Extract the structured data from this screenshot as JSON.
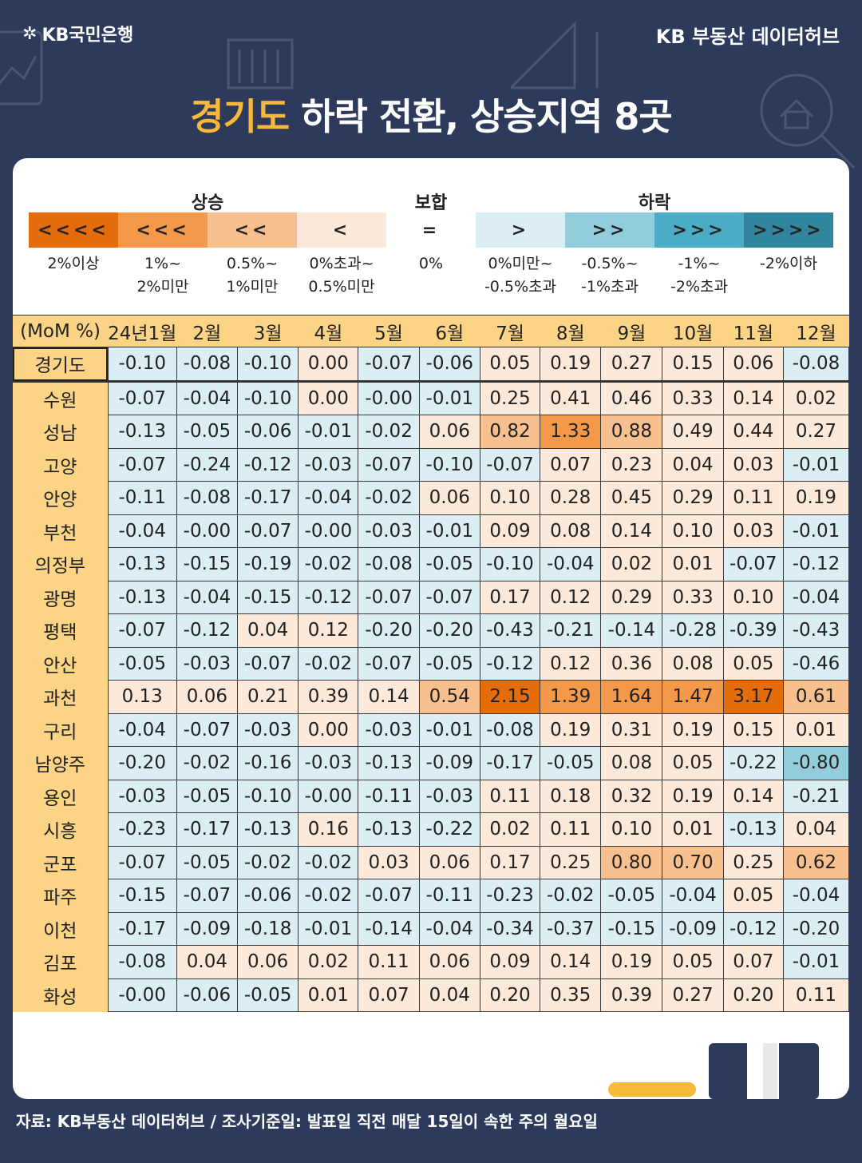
{
  "brand": {
    "left": "KB국민은행",
    "right": "KB 부동산  데이터허브"
  },
  "title": {
    "highlight": "경기도",
    "rest": " 하락 전환, 상승지역 8곳"
  },
  "legend": {
    "groups": {
      "rise": "상승",
      "flat": "보합",
      "fall": "하락"
    },
    "boxes": [
      {
        "symbol": "<<<<",
        "text": "2%이상",
        "color": "#e46c0a"
      },
      {
        "symbol": "<<<",
        "text": "1%~\n2%미만",
        "color": "#f39949"
      },
      {
        "symbol": "<<",
        "text": "0.5%~\n1%미만",
        "color": "#f9c08f"
      },
      {
        "symbol": "<",
        "text": "0%초과~\n0.5%미만",
        "color": "#fde9d9"
      },
      {
        "symbol": "=",
        "text": "0%",
        "color": "#ffffff"
      },
      {
        "symbol": ">",
        "text": "0%미만~\n-0.5%초과",
        "color": "#daeef3"
      },
      {
        "symbol": ">>",
        "text": "-0.5%~\n-1%초과",
        "color": "#92cddc"
      },
      {
        "symbol": ">>>",
        "text": "-1%~\n-2%초과",
        "color": "#4bacc6"
      },
      {
        "symbol": ">>>>",
        "text": "-2%이하",
        "color": "#31859c"
      }
    ]
  },
  "chart_data": {
    "type": "heatmap",
    "unit_label": "(MoM %)",
    "columns": [
      "24년1월",
      "2월",
      "3월",
      "4월",
      "5월",
      "6월",
      "7월",
      "8월",
      "9월",
      "10월",
      "11월",
      "12월"
    ],
    "rows": [
      {
        "name": "경기도",
        "values": [
          -0.1,
          -0.08,
          -0.1,
          0.0,
          -0.07,
          -0.06,
          0.05,
          0.19,
          0.27,
          0.15,
          0.06,
          -0.08
        ]
      },
      {
        "name": "수원",
        "values": [
          -0.07,
          -0.04,
          -0.1,
          0.0,
          -0.0,
          -0.01,
          0.25,
          0.41,
          0.46,
          0.33,
          0.14,
          0.02
        ]
      },
      {
        "name": "성남",
        "values": [
          -0.13,
          -0.05,
          -0.06,
          -0.01,
          -0.02,
          0.06,
          0.82,
          1.33,
          0.88,
          0.49,
          0.44,
          0.27
        ]
      },
      {
        "name": "고양",
        "values": [
          -0.07,
          -0.24,
          -0.12,
          -0.03,
          -0.07,
          -0.1,
          -0.07,
          0.07,
          0.23,
          0.04,
          0.03,
          -0.01
        ]
      },
      {
        "name": "안양",
        "values": [
          -0.11,
          -0.08,
          -0.17,
          -0.04,
          -0.02,
          0.06,
          0.1,
          0.28,
          0.45,
          0.29,
          0.11,
          0.19
        ]
      },
      {
        "name": "부천",
        "values": [
          -0.04,
          -0.0,
          -0.07,
          -0.0,
          -0.03,
          -0.01,
          0.09,
          0.08,
          0.14,
          0.1,
          0.03,
          -0.01
        ]
      },
      {
        "name": "의정부",
        "values": [
          -0.13,
          -0.15,
          -0.19,
          -0.02,
          -0.08,
          -0.05,
          -0.1,
          -0.04,
          0.02,
          0.01,
          -0.07,
          -0.12
        ]
      },
      {
        "name": "광명",
        "values": [
          -0.13,
          -0.04,
          -0.15,
          -0.12,
          -0.07,
          -0.07,
          0.17,
          0.12,
          0.29,
          0.33,
          0.1,
          -0.04
        ]
      },
      {
        "name": "평택",
        "values": [
          -0.07,
          -0.12,
          0.04,
          0.12,
          -0.2,
          -0.2,
          -0.43,
          -0.21,
          -0.14,
          -0.28,
          -0.39,
          -0.43
        ]
      },
      {
        "name": "안산",
        "values": [
          -0.05,
          -0.03,
          -0.07,
          -0.02,
          -0.07,
          -0.05,
          -0.12,
          0.12,
          0.36,
          0.08,
          0.05,
          -0.46
        ]
      },
      {
        "name": "과천",
        "values": [
          0.13,
          0.06,
          0.21,
          0.39,
          0.14,
          0.54,
          2.15,
          1.39,
          1.64,
          1.47,
          3.17,
          0.61
        ]
      },
      {
        "name": "구리",
        "values": [
          -0.04,
          -0.07,
          -0.03,
          0.0,
          -0.03,
          -0.01,
          -0.08,
          0.19,
          0.31,
          0.19,
          0.15,
          0.01
        ]
      },
      {
        "name": "남양주",
        "values": [
          -0.2,
          -0.02,
          -0.16,
          -0.03,
          -0.13,
          -0.09,
          -0.17,
          -0.05,
          0.08,
          0.05,
          -0.22,
          -0.8
        ]
      },
      {
        "name": "용인",
        "values": [
          -0.03,
          -0.05,
          -0.1,
          -0.0,
          -0.11,
          -0.03,
          0.11,
          0.18,
          0.32,
          0.19,
          0.14,
          -0.21
        ]
      },
      {
        "name": "시흥",
        "values": [
          -0.23,
          -0.17,
          -0.13,
          0.16,
          -0.13,
          -0.22,
          0.02,
          0.11,
          0.1,
          0.01,
          -0.13,
          0.04
        ]
      },
      {
        "name": "군포",
        "values": [
          -0.07,
          -0.05,
          -0.02,
          -0.02,
          0.03,
          0.06,
          0.17,
          0.25,
          0.8,
          0.7,
          0.25,
          0.62
        ]
      },
      {
        "name": "파주",
        "values": [
          -0.15,
          -0.07,
          -0.06,
          -0.02,
          -0.07,
          -0.11,
          -0.23,
          -0.02,
          -0.05,
          -0.04,
          0.05,
          -0.04
        ]
      },
      {
        "name": "이천",
        "values": [
          -0.17,
          -0.09,
          -0.18,
          -0.01,
          -0.14,
          -0.04,
          -0.34,
          -0.37,
          -0.15,
          -0.09,
          -0.12,
          -0.2
        ]
      },
      {
        "name": "김포",
        "values": [
          -0.08,
          0.04,
          0.06,
          0.02,
          0.11,
          0.06,
          0.09,
          0.14,
          0.19,
          0.05,
          0.07,
          -0.01
        ]
      },
      {
        "name": "화성",
        "values": [
          -0.0,
          -0.06,
          -0.05,
          0.01,
          0.07,
          0.04,
          0.2,
          0.35,
          0.39,
          0.27,
          0.2,
          0.11
        ]
      }
    ],
    "display": [
      [
        "-0.10",
        "-0.08",
        "-0.10",
        "0.00",
        "-0.07",
        "-0.06",
        "0.05",
        "0.19",
        "0.27",
        "0.15",
        "0.06",
        "-0.08"
      ],
      [
        "-0.07",
        "-0.04",
        "-0.10",
        "0.00",
        "-0.00",
        "-0.01",
        "0.25",
        "0.41",
        "0.46",
        "0.33",
        "0.14",
        "0.02"
      ],
      [
        "-0.13",
        "-0.05",
        "-0.06",
        "-0.01",
        "-0.02",
        "0.06",
        "0.82",
        "1.33",
        "0.88",
        "0.49",
        "0.44",
        "0.27"
      ],
      [
        "-0.07",
        "-0.24",
        "-0.12",
        "-0.03",
        "-0.07",
        "-0.10",
        "-0.07",
        "0.07",
        "0.23",
        "0.04",
        "0.03",
        "-0.01"
      ],
      [
        "-0.11",
        "-0.08",
        "-0.17",
        "-0.04",
        "-0.02",
        "0.06",
        "0.10",
        "0.28",
        "0.45",
        "0.29",
        "0.11",
        "0.19"
      ],
      [
        "-0.04",
        "-0.00",
        "-0.07",
        "-0.00",
        "-0.03",
        "-0.01",
        "0.09",
        "0.08",
        "0.14",
        "0.10",
        "0.03",
        "-0.01"
      ],
      [
        "-0.13",
        "-0.15",
        "-0.19",
        "-0.02",
        "-0.08",
        "-0.05",
        "-0.10",
        "-0.04",
        "0.02",
        "0.01",
        "-0.07",
        "-0.12"
      ],
      [
        "-0.13",
        "-0.04",
        "-0.15",
        "-0.12",
        "-0.07",
        "-0.07",
        "0.17",
        "0.12",
        "0.29",
        "0.33",
        "0.10",
        "-0.04"
      ],
      [
        "-0.07",
        "-0.12",
        "0.04",
        "0.12",
        "-0.20",
        "-0.20",
        "-0.43",
        "-0.21",
        "-0.14",
        "-0.28",
        "-0.39",
        "-0.43"
      ],
      [
        "-0.05",
        "-0.03",
        "-0.07",
        "-0.02",
        "-0.07",
        "-0.05",
        "-0.12",
        "0.12",
        "0.36",
        "0.08",
        "0.05",
        "-0.46"
      ],
      [
        "0.13",
        "0.06",
        "0.21",
        "0.39",
        "0.14",
        "0.54",
        "2.15",
        "1.39",
        "1.64",
        "1.47",
        "3.17",
        "0.61"
      ],
      [
        "-0.04",
        "-0.07",
        "-0.03",
        "0.00",
        "-0.03",
        "-0.01",
        "-0.08",
        "0.19",
        "0.31",
        "0.19",
        "0.15",
        "0.01"
      ],
      [
        "-0.20",
        "-0.02",
        "-0.16",
        "-0.03",
        "-0.13",
        "-0.09",
        "-0.17",
        "-0.05",
        "0.08",
        "0.05",
        "-0.22",
        "-0.80"
      ],
      [
        "-0.03",
        "-0.05",
        "-0.10",
        "-0.00",
        "-0.11",
        "-0.03",
        "0.11",
        "0.18",
        "0.32",
        "0.19",
        "0.14",
        "-0.21"
      ],
      [
        "-0.23",
        "-0.17",
        "-0.13",
        "0.16",
        "-0.13",
        "-0.22",
        "0.02",
        "0.11",
        "0.10",
        "0.01",
        "-0.13",
        "0.04"
      ],
      [
        "-0.07",
        "-0.05",
        "-0.02",
        "-0.02",
        "0.03",
        "0.06",
        "0.17",
        "0.25",
        "0.80",
        "0.70",
        "0.25",
        "0.62"
      ],
      [
        "-0.15",
        "-0.07",
        "-0.06",
        "-0.02",
        "-0.07",
        "-0.11",
        "-0.23",
        "-0.02",
        "-0.05",
        "-0.04",
        "0.05",
        "-0.04"
      ],
      [
        "-0.17",
        "-0.09",
        "-0.18",
        "-0.01",
        "-0.14",
        "-0.04",
        "-0.34",
        "-0.37",
        "-0.15",
        "-0.09",
        "-0.12",
        "-0.20"
      ],
      [
        "-0.08",
        "0.04",
        "0.06",
        "0.02",
        "0.11",
        "0.06",
        "0.09",
        "0.14",
        "0.19",
        "0.05",
        "0.07",
        "-0.01"
      ],
      [
        "-0.00",
        "-0.06",
        "-0.05",
        "0.01",
        "0.07",
        "0.04",
        "0.20",
        "0.35",
        "0.39",
        "0.27",
        "0.20",
        "0.11"
      ]
    ]
  },
  "footer": "자료: KB부동산 데이터허브 / 조사기준일: 발표일 직전 매달 15일이 속한 주의 월요일"
}
